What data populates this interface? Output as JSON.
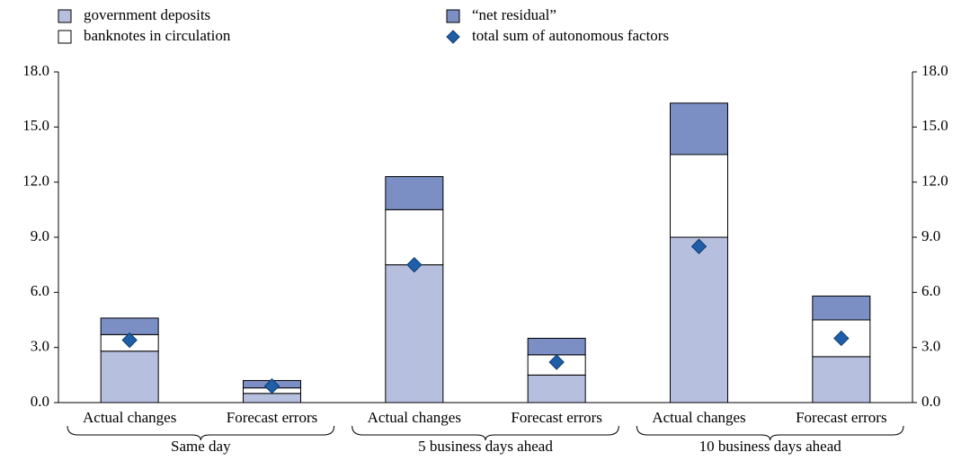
{
  "chart_data": {
    "type": "bar",
    "stacked": true,
    "categories": [
      "Actual changes",
      "Forecast errors",
      "Actual changes",
      "Forecast errors",
      "Actual changes",
      "Forecast errors"
    ],
    "groups": [
      "Same day",
      "5 business days ahead",
      "10 business days ahead"
    ],
    "series": [
      {
        "name": "government deposits",
        "type": "bar",
        "color": "#b7bfdf",
        "values": [
          2.8,
          0.5,
          7.5,
          1.5,
          9.0,
          2.5
        ]
      },
      {
        "name": "banknotes in circulation",
        "type": "bar",
        "color": "#ffffff",
        "values": [
          0.9,
          0.3,
          3.0,
          1.1,
          4.5,
          2.0
        ]
      },
      {
        "name": "“net residual”",
        "type": "bar",
        "color": "#7b8fc4",
        "values": [
          0.9,
          0.4,
          1.8,
          0.9,
          2.8,
          1.3
        ]
      },
      {
        "name": "total sum of autonomous factors",
        "type": "scatter",
        "marker": "diamond",
        "color": "#1f5fa8",
        "values": [
          3.4,
          0.9,
          7.5,
          2.2,
          8.5,
          3.5
        ]
      }
    ],
    "ylim": [
      0,
      18
    ],
    "yticks": [
      {
        "value": 0,
        "label": "0.0"
      },
      {
        "value": 3,
        "label": "3.0"
      },
      {
        "value": 6,
        "label": "6.0"
      },
      {
        "value": 9,
        "label": "9.0"
      },
      {
        "value": 12,
        "label": "12.0"
      },
      {
        "value": 15,
        "label": "15.0"
      },
      {
        "value": 18,
        "label": "18.0"
      }
    ],
    "y2lim": [
      0,
      18
    ],
    "y2ticks": [
      {
        "value": 0,
        "label": "0.0"
      },
      {
        "value": 3,
        "label": "3.0"
      },
      {
        "value": 6,
        "label": "6.0"
      },
      {
        "value": 9,
        "label": "9.0"
      },
      {
        "value": 12,
        "label": "12.0"
      },
      {
        "value": 15,
        "label": "15.0"
      },
      {
        "value": 18,
        "label": "18.0"
      }
    ],
    "grid": false
  }
}
